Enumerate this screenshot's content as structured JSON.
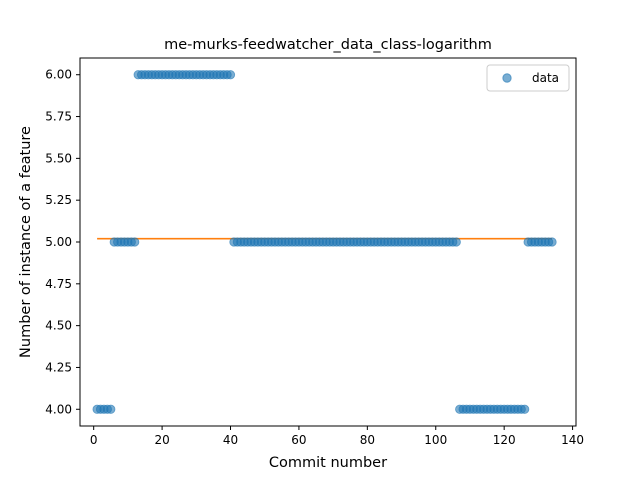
{
  "chart_data": {
    "type": "scatter",
    "title": "me-murks-feedwatcher_data_class-logarithm",
    "xlabel": "Commit number",
    "ylabel": "Number of instance of a feature",
    "xlim": [
      -4,
      141
    ],
    "ylim": [
      3.9,
      6.1
    ],
    "xticks": [
      0,
      20,
      40,
      60,
      80,
      100,
      120,
      140
    ],
    "xtick_labels": [
      "0",
      "20",
      "40",
      "60",
      "80",
      "100",
      "120",
      "140"
    ],
    "yticks": [
      4.0,
      4.25,
      4.5,
      4.75,
      5.0,
      5.25,
      5.5,
      5.75,
      6.0
    ],
    "ytick_labels": [
      "4.00",
      "4.25",
      "4.50",
      "4.75",
      "5.00",
      "5.25",
      "5.50",
      "5.75",
      "6.00"
    ],
    "legend": {
      "position": "top-right",
      "entries": [
        {
          "label": "data",
          "marker": "circle",
          "color": "#1f77b4"
        }
      ]
    },
    "grid": false,
    "series": [
      {
        "name": "data",
        "kind": "points",
        "color": "#1f77b4",
        "alpha": 0.6,
        "segments": [
          {
            "x_start": 1,
            "x_end": 5,
            "y": 4.0
          },
          {
            "x_start": 6,
            "x_end": 12,
            "y": 5.0
          },
          {
            "x_start": 13,
            "x_end": 40,
            "y": 6.0
          },
          {
            "x_start": 41,
            "x_end": 106,
            "y": 5.0
          },
          {
            "x_start": 107,
            "x_end": 126,
            "y": 4.0
          },
          {
            "x_start": 127,
            "x_end": 134,
            "y": 5.0
          }
        ]
      },
      {
        "kind": "line",
        "color": "#ff7f0e",
        "x": [
          1,
          134
        ],
        "y": [
          5.02,
          5.02
        ]
      }
    ]
  }
}
